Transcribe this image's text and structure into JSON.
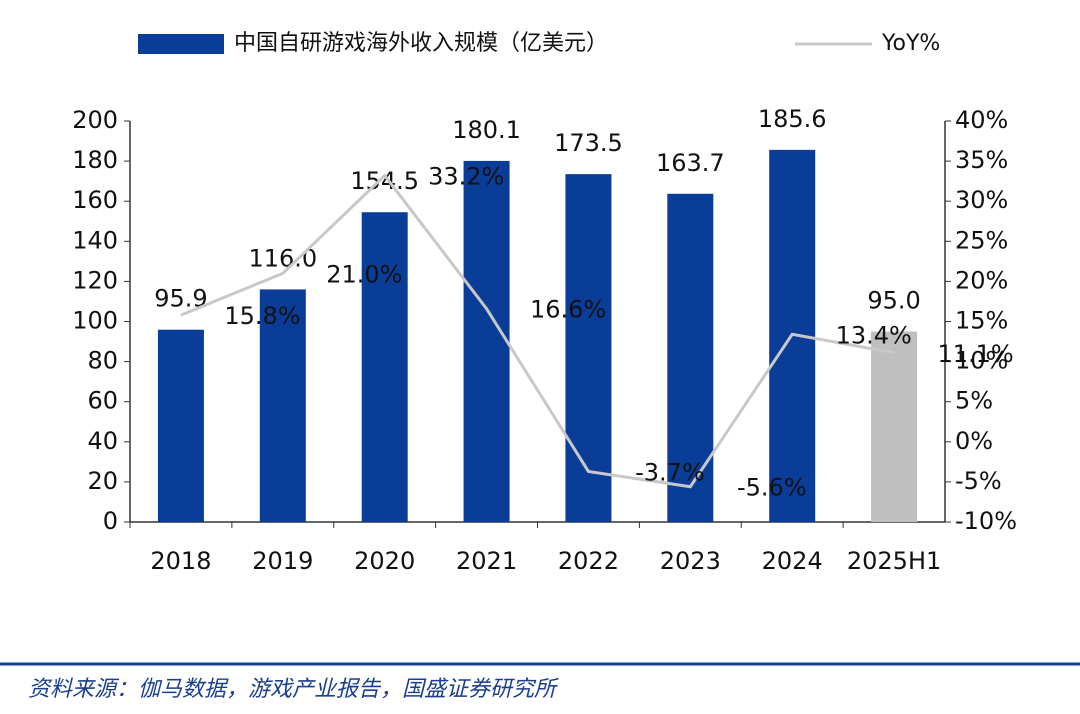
{
  "chart_data": {
    "type": "bar_line",
    "categories": [
      "2018",
      "2019",
      "2020",
      "2021",
      "2022",
      "2023",
      "2024",
      "2025H1"
    ],
    "series": [
      {
        "name": "中国自研游戏海外收入规模（亿美元）",
        "type": "bar",
        "color": "#0a3d98",
        "colors": [
          "#0a3d98",
          "#0a3d98",
          "#0a3d98",
          "#0a3d98",
          "#0a3d98",
          "#0a3d98",
          "#0a3d98",
          "#bfbfbf"
        ],
        "values": [
          95.9,
          116.0,
          154.5,
          180.1,
          173.5,
          163.7,
          185.6,
          95.0
        ],
        "value_labels": [
          "95.9",
          "116.0",
          "154.5",
          "180.1",
          "173.5",
          "163.7",
          "185.6",
          "95.0"
        ]
      },
      {
        "name": "YoY%",
        "type": "line",
        "axis": "y2",
        "color": "#c8c8c8",
        "values": [
          15.8,
          21.0,
          33.2,
          16.6,
          -3.7,
          -5.6,
          13.4,
          11.1
        ],
        "value_labels": [
          "15.8%",
          "21.0%",
          "33.2%",
          "16.6%",
          "-3.7%",
          "-5.6%",
          "13.4%",
          "11.1%"
        ]
      }
    ],
    "ylim": [
      0,
      200
    ],
    "yticks": [
      0,
      20,
      40,
      60,
      80,
      100,
      120,
      140,
      160,
      180,
      200
    ],
    "y2lim": [
      -10,
      40
    ],
    "y2ticks": [
      {
        "value": -10,
        "label": "-10%"
      },
      {
        "value": -5,
        "label": "-5%"
      },
      {
        "value": 0,
        "label": "0%"
      },
      {
        "value": 5,
        "label": "5%"
      },
      {
        "value": 10,
        "label": "10%"
      },
      {
        "value": 15,
        "label": "15%"
      },
      {
        "value": 20,
        "label": "20%"
      },
      {
        "value": 25,
        "label": "25%"
      },
      {
        "value": 30,
        "label": "30%"
      },
      {
        "value": 35,
        "label": "35%"
      },
      {
        "value": 40,
        "label": "40%"
      }
    ],
    "legend": "top",
    "source": "资料来源：伽马数据，游戏产业报告，国盛证券研究所"
  }
}
